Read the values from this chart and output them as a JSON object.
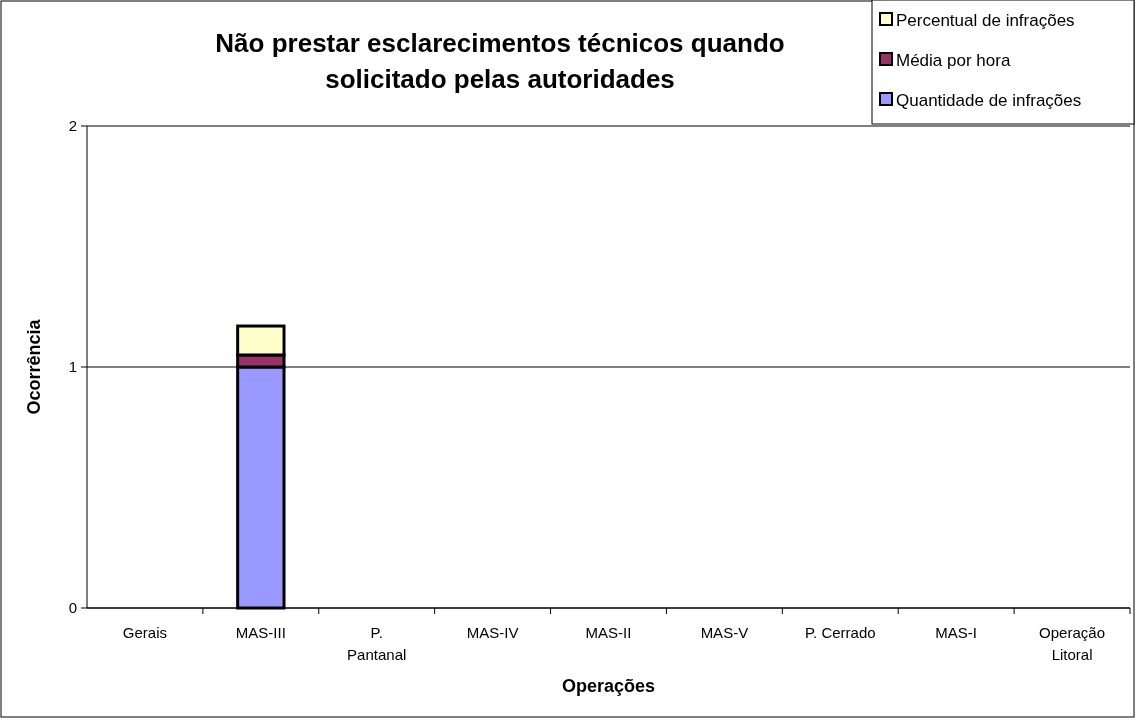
{
  "chart_data": {
    "type": "bar",
    "title": "Não prestar esclarecimentos técnicos quando solicitado pelas autoridades",
    "xlabel": "Operações",
    "ylabel": "Ocorrência",
    "categories": [
      "Gerais",
      "MAS-III",
      "P. Pantanal",
      "MAS-IV",
      "MAS-II",
      "MAS-V",
      "P. Cerrado",
      "MAS-I",
      "Operação Litoral"
    ],
    "stacked": true,
    "series": [
      {
        "name": "Quantidade de infrações",
        "color": "#9999ff",
        "values": [
          0,
          1,
          0,
          0,
          0,
          0,
          0,
          0,
          0
        ]
      },
      {
        "name": "Média por hora",
        "color": "#993366",
        "values": [
          0,
          0.05,
          0,
          0,
          0,
          0,
          0,
          0,
          0
        ]
      },
      {
        "name": "Percentual de infrações",
        "color": "#ffffcc",
        "values": [
          0,
          0.12,
          0,
          0,
          0,
          0,
          0,
          0,
          0
        ]
      }
    ],
    "ylim": [
      0,
      2
    ],
    "yticks": [
      0,
      1,
      2
    ],
    "grid": "y",
    "legend": "top right"
  }
}
